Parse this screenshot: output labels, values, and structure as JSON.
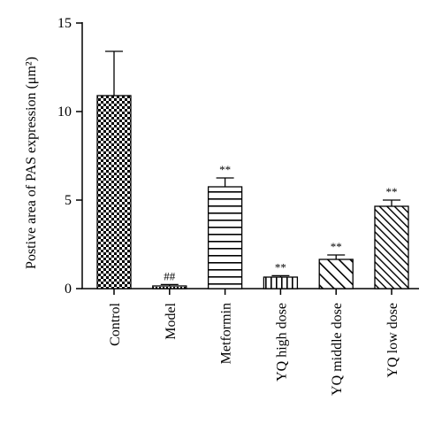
{
  "chart_data": {
    "type": "bar",
    "ylabel": "Postive area of PAS expression (μm²)",
    "xlabel": "",
    "ylim": [
      0,
      15
    ],
    "yticks": [
      "0",
      "5",
      "10",
      "15"
    ],
    "categories": [
      "Control",
      "Model",
      "Metformin",
      "YQ high dose",
      "YQ middle dose",
      "YQ low dose"
    ],
    "values": [
      10.9,
      0.15,
      5.75,
      0.65,
      1.65,
      4.65
    ],
    "errors": [
      2.5,
      0.08,
      0.5,
      0.08,
      0.25,
      0.35
    ],
    "significance": [
      "",
      "##",
      "**",
      "**",
      "**",
      "**"
    ],
    "patterns": [
      "checker",
      "dots",
      "hlines",
      "vlines",
      "diag-wide",
      "diag-narrow"
    ],
    "grid": false
  }
}
